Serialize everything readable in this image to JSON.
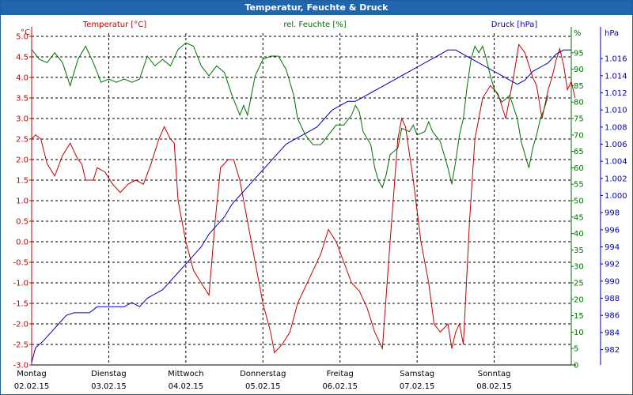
{
  "title": "Temperatur, Feuchte & Druck",
  "colors": {
    "temperature": "#c00000",
    "humidity": "#007000",
    "pressure": "#0000b0",
    "grid": "#000000",
    "title_bg": "#1f66ad"
  },
  "chart_data": {
    "type": "line",
    "title": "Temperatur, Feuchte & Druck",
    "x_days": [
      {
        "day": "Montag",
        "date": "02.02.15"
      },
      {
        "day": "Dienstag",
        "date": "03.02.15"
      },
      {
        "day": "Mittwoch",
        "date": "04.02.15"
      },
      {
        "day": "Donnerstag",
        "date": "05.02.15"
      },
      {
        "day": "Freitag",
        "date": "06.02.15"
      },
      {
        "day": "Samstag",
        "date": "07.02.15"
      },
      {
        "day": "Sonntag",
        "date": "08.02.15"
      }
    ],
    "x_range": [
      0,
      7
    ],
    "axes": {
      "temperature": {
        "label": "Temperatur [°C]",
        "unit": "°C",
        "min": -3.0,
        "max": 5.0,
        "ticks": [
          "5.0",
          "4.5",
          "4.0",
          "3.5",
          "3.0",
          "2.5",
          "2.0",
          "1.5",
          "1.0",
          "0.5",
          "0.0",
          "-0.5",
          "-1.0",
          "-1.5",
          "-2.0",
          "-2.5",
          "-3.0"
        ]
      },
      "humidity": {
        "label": "rel. Feuchte [%]",
        "unit": "%",
        "min": 0,
        "max": 100,
        "ticks": [
          "95",
          "90",
          "85",
          "80",
          "75",
          "70",
          "65",
          "60",
          "55",
          "50",
          "45",
          "40",
          "35",
          "30",
          "25",
          "20",
          "15",
          "10",
          "5",
          "0"
        ]
      },
      "pressure": {
        "label": "Druck [hPa]",
        "unit": "hPa",
        "min": 980.2,
        "max": 1018.6,
        "ticks": [
          "1.016",
          "1.014",
          "1.012",
          "1.010",
          "1.008",
          "1.006",
          "1.004",
          "1.002",
          "1.000",
          "998",
          "996",
          "994",
          "992",
          "990",
          "988",
          "986",
          "984",
          "982"
        ]
      }
    },
    "series": [
      {
        "name": "Temperatur [°C]",
        "axis": "temperature",
        "color": "#c00000",
        "points": [
          [
            0,
            2.5
          ],
          [
            0.05,
            2.6
          ],
          [
            0.12,
            2.5
          ],
          [
            0.2,
            1.9
          ],
          [
            0.3,
            1.6
          ],
          [
            0.4,
            2.1
          ],
          [
            0.5,
            2.4
          ],
          [
            0.6,
            2.0
          ],
          [
            0.65,
            1.9
          ],
          [
            0.7,
            1.5
          ],
          [
            0.8,
            1.5
          ],
          [
            0.85,
            1.8
          ],
          [
            0.95,
            1.7
          ],
          [
            1.05,
            1.4
          ],
          [
            1.15,
            1.2
          ],
          [
            1.25,
            1.4
          ],
          [
            1.35,
            1.5
          ],
          [
            1.45,
            1.4
          ],
          [
            1.55,
            1.9
          ],
          [
            1.65,
            2.5
          ],
          [
            1.72,
            2.8
          ],
          [
            1.8,
            2.5
          ],
          [
            1.85,
            2.4
          ],
          [
            1.9,
            1.0
          ],
          [
            2.0,
            0.0
          ],
          [
            2.1,
            -0.7
          ],
          [
            2.2,
            -1.0
          ],
          [
            2.3,
            -1.3
          ],
          [
            2.38,
            0.5
          ],
          [
            2.45,
            1.8
          ],
          [
            2.55,
            2.0
          ],
          [
            2.62,
            2.0
          ],
          [
            2.7,
            1.5
          ],
          [
            2.8,
            0.5
          ],
          [
            2.9,
            -0.5
          ],
          [
            3.0,
            -1.5
          ],
          [
            3.1,
            -2.2
          ],
          [
            3.15,
            -2.7
          ],
          [
            3.25,
            -2.5
          ],
          [
            3.35,
            -2.2
          ],
          [
            3.45,
            -1.5
          ],
          [
            3.55,
            -1.1
          ],
          [
            3.65,
            -0.7
          ],
          [
            3.75,
            -0.3
          ],
          [
            3.85,
            0.3
          ],
          [
            3.95,
            0.0
          ],
          [
            4.05,
            -0.5
          ],
          [
            4.15,
            -1.0
          ],
          [
            4.25,
            -1.2
          ],
          [
            4.35,
            -1.6
          ],
          [
            4.45,
            -2.2
          ],
          [
            4.55,
            -2.6
          ],
          [
            4.65,
            0.0
          ],
          [
            4.75,
            2.5
          ],
          [
            4.8,
            3.0
          ],
          [
            4.85,
            2.8
          ],
          [
            4.95,
            1.5
          ],
          [
            5.05,
            0.0
          ],
          [
            5.15,
            -1.0
          ],
          [
            5.22,
            -2.0
          ],
          [
            5.3,
            -2.2
          ],
          [
            5.4,
            -2.0
          ],
          [
            5.45,
            -2.6
          ],
          [
            5.5,
            -2.2
          ],
          [
            5.55,
            -2.0
          ],
          [
            5.6,
            -2.5
          ],
          [
            5.68,
            0.5
          ],
          [
            5.75,
            2.5
          ],
          [
            5.85,
            3.5
          ],
          [
            5.95,
            3.8
          ],
          [
            6.05,
            3.6
          ],
          [
            6.15,
            3.0
          ],
          [
            6.2,
            3.5
          ],
          [
            6.25,
            4.0
          ],
          [
            6.32,
            4.8
          ],
          [
            6.4,
            4.6
          ],
          [
            6.45,
            4.3
          ],
          [
            6.5,
            4.0
          ],
          [
            6.55,
            3.8
          ],
          [
            6.62,
            3.0
          ],
          [
            6.7,
            3.7
          ],
          [
            6.75,
            4.0
          ],
          [
            6.8,
            4.4
          ],
          [
            6.85,
            4.7
          ],
          [
            6.9,
            4.3
          ],
          [
            6.95,
            3.7
          ],
          [
            7.0,
            3.9
          ],
          [
            7.05,
            3.5
          ]
        ]
      },
      {
        "name": "rel. Feuchte [%]",
        "axis": "humidity",
        "color": "#007000",
        "points": [
          [
            0,
            96
          ],
          [
            0.1,
            93
          ],
          [
            0.2,
            92
          ],
          [
            0.3,
            95
          ],
          [
            0.4,
            92
          ],
          [
            0.5,
            85
          ],
          [
            0.6,
            93
          ],
          [
            0.7,
            97
          ],
          [
            0.8,
            92
          ],
          [
            0.9,
            86
          ],
          [
            1.0,
            87
          ],
          [
            1.1,
            86
          ],
          [
            1.2,
            87
          ],
          [
            1.3,
            86
          ],
          [
            1.4,
            87
          ],
          [
            1.5,
            94
          ],
          [
            1.6,
            91
          ],
          [
            1.7,
            93
          ],
          [
            1.8,
            91
          ],
          [
            1.9,
            96
          ],
          [
            2.0,
            98
          ],
          [
            2.1,
            97
          ],
          [
            2.2,
            91
          ],
          [
            2.3,
            88
          ],
          [
            2.4,
            91
          ],
          [
            2.5,
            89
          ],
          [
            2.6,
            82
          ],
          [
            2.7,
            76
          ],
          [
            2.75,
            79
          ],
          [
            2.8,
            76
          ],
          [
            2.9,
            88
          ],
          [
            3.0,
            93
          ],
          [
            3.1,
            94
          ],
          [
            3.2,
            94
          ],
          [
            3.3,
            90
          ],
          [
            3.4,
            82
          ],
          [
            3.45,
            75
          ],
          [
            3.55,
            70
          ],
          [
            3.65,
            67
          ],
          [
            3.75,
            67
          ],
          [
            3.85,
            70
          ],
          [
            3.95,
            73
          ],
          [
            4.05,
            73
          ],
          [
            4.15,
            76
          ],
          [
            4.2,
            79
          ],
          [
            4.25,
            77
          ],
          [
            4.3,
            71
          ],
          [
            4.4,
            67
          ],
          [
            4.45,
            60
          ],
          [
            4.5,
            56
          ],
          [
            4.55,
            54
          ],
          [
            4.6,
            58
          ],
          [
            4.65,
            64
          ],
          [
            4.75,
            66
          ],
          [
            4.8,
            72
          ],
          [
            4.9,
            71
          ],
          [
            4.95,
            73
          ],
          [
            5.0,
            70
          ],
          [
            5.1,
            71
          ],
          [
            5.15,
            74
          ],
          [
            5.2,
            71
          ],
          [
            5.3,
            68
          ],
          [
            5.4,
            60
          ],
          [
            5.45,
            55
          ],
          [
            5.5,
            62
          ],
          [
            5.55,
            70
          ],
          [
            5.6,
            75
          ],
          [
            5.65,
            85
          ],
          [
            5.7,
            93
          ],
          [
            5.75,
            97
          ],
          [
            5.8,
            95
          ],
          [
            5.85,
            97
          ],
          [
            5.9,
            93
          ],
          [
            5.95,
            88
          ],
          [
            6.0,
            84
          ],
          [
            6.05,
            82
          ],
          [
            6.1,
            80
          ],
          [
            6.2,
            82
          ],
          [
            6.3,
            75
          ],
          [
            6.35,
            68
          ],
          [
            6.4,
            64
          ],
          [
            6.45,
            60
          ],
          [
            6.5,
            66
          ],
          [
            6.55,
            70
          ],
          [
            6.6,
            75
          ],
          [
            6.65,
            78
          ],
          [
            6.7,
            82
          ]
        ]
      },
      {
        "name": "Druck [hPa]",
        "axis": "pressure",
        "color": "#0000b0",
        "points": [
          [
            0,
            980.5
          ],
          [
            0.05,
            982.2
          ],
          [
            0.15,
            983.0
          ],
          [
            0.25,
            984.0
          ],
          [
            0.35,
            985.0
          ],
          [
            0.45,
            986.0
          ],
          [
            0.55,
            986.3
          ],
          [
            0.75,
            986.3
          ],
          [
            0.85,
            987.0
          ],
          [
            1.0,
            987.0
          ],
          [
            1.2,
            987.0
          ],
          [
            1.3,
            987.5
          ],
          [
            1.4,
            987.0
          ],
          [
            1.5,
            988.0
          ],
          [
            1.6,
            988.5
          ],
          [
            1.7,
            989.0
          ],
          [
            1.8,
            990.0
          ],
          [
            1.9,
            991.0
          ],
          [
            2.0,
            992.0
          ],
          [
            2.1,
            993.0
          ],
          [
            2.2,
            994.0
          ],
          [
            2.3,
            995.5
          ],
          [
            2.4,
            996.5
          ],
          [
            2.5,
            997.5
          ],
          [
            2.6,
            999.0
          ],
          [
            2.7,
            1000.0
          ],
          [
            2.8,
            1001.0
          ],
          [
            2.9,
            1002.0
          ],
          [
            3.0,
            1003.0
          ],
          [
            3.1,
            1004.0
          ],
          [
            3.2,
            1005.0
          ],
          [
            3.3,
            1006.0
          ],
          [
            3.4,
            1006.5
          ],
          [
            3.5,
            1007.0
          ],
          [
            3.6,
            1007.5
          ],
          [
            3.7,
            1008.0
          ],
          [
            3.8,
            1009.0
          ],
          [
            3.9,
            1010.0
          ],
          [
            4.0,
            1010.5
          ],
          [
            4.1,
            1011.0
          ],
          [
            4.2,
            1011.0
          ],
          [
            4.3,
            1011.5
          ],
          [
            4.4,
            1012.0
          ],
          [
            4.5,
            1012.5
          ],
          [
            4.6,
            1013.0
          ],
          [
            4.7,
            1013.5
          ],
          [
            4.8,
            1014.0
          ],
          [
            4.9,
            1014.5
          ],
          [
            5.0,
            1015.0
          ],
          [
            5.1,
            1015.5
          ],
          [
            5.2,
            1016.0
          ],
          [
            5.3,
            1016.5
          ],
          [
            5.4,
            1017.0
          ],
          [
            5.5,
            1017.0
          ],
          [
            5.6,
            1016.5
          ],
          [
            5.7,
            1016.0
          ],
          [
            5.8,
            1015.5
          ],
          [
            5.9,
            1015.0
          ],
          [
            6.0,
            1014.5
          ],
          [
            6.1,
            1014.0
          ],
          [
            6.2,
            1013.5
          ],
          [
            6.3,
            1013.0
          ],
          [
            6.4,
            1013.5
          ],
          [
            6.5,
            1014.5
          ],
          [
            6.6,
            1015.0
          ],
          [
            6.7,
            1015.5
          ],
          [
            6.8,
            1016.5
          ],
          [
            6.9,
            1017.0
          ],
          [
            7.0,
            1017.0
          ]
        ]
      }
    ],
    "grid": true
  }
}
